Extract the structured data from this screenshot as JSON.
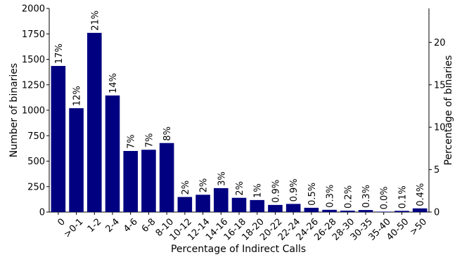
{
  "chart_data": {
    "type": "bar",
    "xlabel": "Percentage of Indirect Calls",
    "ylabel": "Number of binaries",
    "y2label": "Percentage of binaries",
    "categories": [
      "0",
      ">0-1",
      "1-2",
      "2-4",
      "4-6",
      "6-8",
      "8-10",
      "10-12",
      "12-14",
      "14-16",
      "16-18",
      "18-20",
      "20-22",
      "22-24",
      "24-26",
      "26-28",
      "28-30",
      "30-35",
      "35-40",
      "40-50",
      ">50"
    ],
    "values": [
      1435,
      1020,
      1760,
      1145,
      600,
      612,
      678,
      148,
      170,
      235,
      140,
      118,
      70,
      80,
      42,
      22,
      14,
      20,
      4,
      12,
      36
    ],
    "labels": [
      "17%",
      "12%",
      "21%",
      "14%",
      "7%",
      "7%",
      "8%",
      "2%",
      "2%",
      "3%",
      "2%",
      "1%",
      "0.9%",
      "0.9%",
      "0.5%",
      "0.3%",
      "0.2%",
      "0.3%",
      "0.0%",
      "0.1%",
      "0.4%"
    ],
    "ylim": [
      0,
      2000
    ],
    "yticks": [
      0,
      250,
      500,
      750,
      1000,
      1250,
      1500,
      1750,
      2000
    ],
    "y2lim": [
      0,
      24
    ],
    "y2ticks": [
      0,
      5,
      10,
      15,
      20
    ],
    "bar_color": "#000080",
    "grid": false,
    "legend": false
  }
}
